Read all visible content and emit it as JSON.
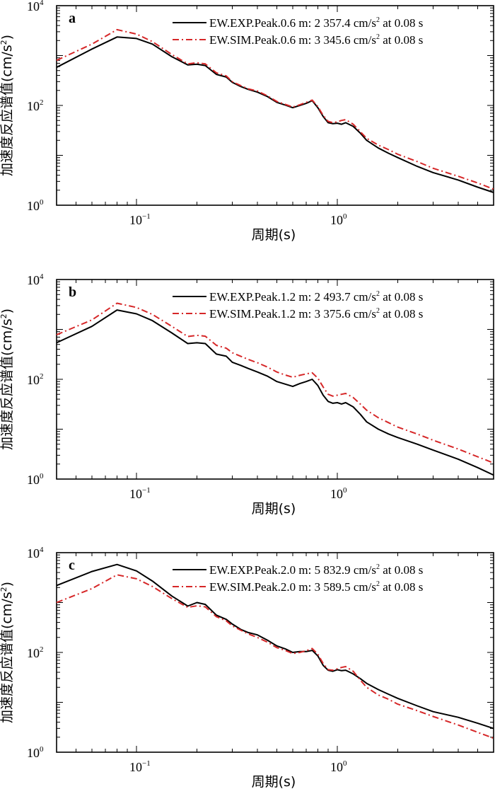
{
  "chart_data": [
    {
      "type": "line",
      "panel_label": "a",
      "xscale": "log",
      "yscale": "log",
      "xlim": [
        0.04,
        6
      ],
      "ylim": [
        1,
        10000
      ],
      "xticks": [
        {
          "base": "10",
          "exp": "−1"
        },
        {
          "base": "10",
          "exp": "0"
        }
      ],
      "yticks": [
        {
          "base": "10",
          "exp": "4"
        },
        {
          "base": "10",
          "exp": "2"
        },
        {
          "base": "10",
          "exp": "0"
        }
      ],
      "xlabel": "周期(s)",
      "ylabel": "加速度反应谱值(cm/s",
      "ylabel_sup": "2",
      "ylabel_close": ")",
      "legend_position": "top-right",
      "series": [
        {
          "name": "EW.EXP.Peak.0.6 m: 2 357.4 cm/s",
          "name_sup": "2",
          "name_tail": " at 0.08 s",
          "color": "#000000",
          "dash": "solid",
          "x": [
            0.04,
            0.06,
            0.08,
            0.1,
            0.12,
            0.15,
            0.18,
            0.2,
            0.22,
            0.25,
            0.28,
            0.3,
            0.33,
            0.36,
            0.4,
            0.45,
            0.5,
            0.55,
            0.6,
            0.65,
            0.7,
            0.75,
            0.8,
            0.85,
            0.9,
            0.95,
            1.0,
            1.05,
            1.1,
            1.2,
            1.3,
            1.4,
            1.6,
            1.8,
            2.0,
            2.5,
            3.0,
            4.0,
            5.0,
            6.0
          ],
          "y": [
            580,
            1350,
            2350,
            2200,
            1700,
            950,
            650,
            670,
            630,
            420,
            370,
            290,
            240,
            210,
            185,
            150,
            115,
            102,
            90,
            100,
            110,
            125,
            90,
            60,
            45,
            43,
            44,
            42,
            45,
            38,
            28,
            20,
            14,
            11,
            9,
            6,
            4.5,
            3.2,
            2.3,
            1.8
          ]
        },
        {
          "name": "EW.SIM.Peak.0.6 m: 3 345.6 cm/s",
          "name_sup": "2",
          "name_tail": " at 0.08 s",
          "color": "#d62728",
          "dash": "dashdot",
          "x": [
            0.04,
            0.06,
            0.08,
            0.1,
            0.12,
            0.15,
            0.18,
            0.2,
            0.22,
            0.25,
            0.28,
            0.3,
            0.33,
            0.36,
            0.4,
            0.45,
            0.5,
            0.55,
            0.6,
            0.65,
            0.7,
            0.75,
            0.8,
            0.85,
            0.9,
            0.95,
            1.0,
            1.05,
            1.1,
            1.2,
            1.3,
            1.4,
            1.6,
            1.8,
            2.0,
            2.5,
            3.0,
            4.0,
            5.0,
            6.0
          ],
          "y": [
            800,
            1700,
            3300,
            2700,
            1900,
            1050,
            680,
            720,
            680,
            450,
            390,
            300,
            250,
            215,
            195,
            155,
            120,
            105,
            93,
            103,
            115,
            128,
            95,
            63,
            48,
            45,
            47,
            50,
            52,
            42,
            30,
            22,
            16,
            13,
            10.5,
            7.5,
            5.5,
            3.8,
            2.8,
            2.1
          ]
        }
      ]
    },
    {
      "type": "line",
      "panel_label": "b",
      "xscale": "log",
      "yscale": "log",
      "xlim": [
        0.04,
        6
      ],
      "ylim": [
        1,
        10000
      ],
      "xticks": [
        {
          "base": "10",
          "exp": "−1"
        },
        {
          "base": "10",
          "exp": "0"
        }
      ],
      "yticks": [
        {
          "base": "10",
          "exp": "4"
        },
        {
          "base": "10",
          "exp": "2"
        },
        {
          "base": "10",
          "exp": "0"
        }
      ],
      "xlabel": "周期(s)",
      "ylabel": "加速度反应谱值(cm/s",
      "ylabel_sup": "2",
      "ylabel_close": ")",
      "legend_position": "top-right",
      "series": [
        {
          "name": "EW.EXP.Peak.1.2 m: 2 493.7 cm/s",
          "name_sup": "2",
          "name_tail": " at 0.08 s",
          "color": "#000000",
          "dash": "solid",
          "x": [
            0.04,
            0.06,
            0.08,
            0.1,
            0.12,
            0.15,
            0.18,
            0.2,
            0.22,
            0.25,
            0.28,
            0.3,
            0.33,
            0.36,
            0.4,
            0.45,
            0.5,
            0.55,
            0.6,
            0.65,
            0.7,
            0.75,
            0.8,
            0.85,
            0.9,
            0.95,
            1.0,
            1.05,
            1.1,
            1.2,
            1.3,
            1.4,
            1.6,
            1.8,
            2.0,
            2.5,
            3.0,
            4.0,
            5.0,
            6.0
          ],
          "y": [
            540,
            1150,
            2450,
            2050,
            1500,
            850,
            520,
            540,
            520,
            320,
            290,
            220,
            190,
            165,
            140,
            115,
            90,
            80,
            72,
            82,
            90,
            100,
            75,
            48,
            36,
            33,
            34,
            32,
            34,
            28,
            20,
            14,
            10,
            8,
            6.8,
            5,
            3.8,
            2.5,
            1.7,
            1.2
          ]
        },
        {
          "name": "EW.SIM.Peak.1.2 m: 3 375.6 cm/s",
          "name_sup": "2",
          "name_tail": " at 0.08 s",
          "color": "#d62728",
          "dash": "dashdot",
          "x": [
            0.04,
            0.06,
            0.08,
            0.1,
            0.12,
            0.15,
            0.18,
            0.2,
            0.22,
            0.25,
            0.28,
            0.3,
            0.33,
            0.36,
            0.4,
            0.45,
            0.5,
            0.55,
            0.6,
            0.65,
            0.7,
            0.75,
            0.8,
            0.85,
            0.9,
            0.95,
            1.0,
            1.05,
            1.1,
            1.2,
            1.3,
            1.4,
            1.6,
            1.8,
            2.0,
            2.5,
            3.0,
            4.0,
            5.0,
            6.0
          ],
          "y": [
            780,
            1550,
            3350,
            2750,
            2000,
            1150,
            720,
            760,
            730,
            480,
            420,
            340,
            290,
            250,
            215,
            175,
            140,
            122,
            110,
            120,
            128,
            135,
            105,
            70,
            50,
            46,
            48,
            50,
            52,
            43,
            32,
            24,
            17,
            13.5,
            11,
            8,
            6,
            4,
            2.8,
            2.1
          ]
        }
      ]
    },
    {
      "type": "line",
      "panel_label": "c",
      "xscale": "log",
      "yscale": "log",
      "xlim": [
        0.04,
        6
      ],
      "ylim": [
        1,
        10000
      ],
      "xticks": [
        {
          "base": "10",
          "exp": "−1"
        },
        {
          "base": "10",
          "exp": "0"
        }
      ],
      "yticks": [
        {
          "base": "10",
          "exp": "4"
        },
        {
          "base": "10",
          "exp": "2"
        },
        {
          "base": "10",
          "exp": "0"
        }
      ],
      "xlabel": "周期(s)",
      "ylabel": "加速度反应谱值(cm/s",
      "ylabel_sup": "2",
      "ylabel_close": ")",
      "legend_position": "top-right",
      "series": [
        {
          "name": "EW.EXP.Peak.2.0 m: 5 832.9 cm/s",
          "name_sup": "2",
          "name_tail": " at 0.08 s",
          "color": "#000000",
          "dash": "solid",
          "x": [
            0.04,
            0.06,
            0.08,
            0.1,
            0.12,
            0.15,
            0.18,
            0.2,
            0.22,
            0.25,
            0.28,
            0.3,
            0.33,
            0.36,
            0.4,
            0.45,
            0.5,
            0.55,
            0.6,
            0.65,
            0.7,
            0.75,
            0.8,
            0.85,
            0.9,
            0.95,
            1.0,
            1.05,
            1.1,
            1.2,
            1.3,
            1.4,
            1.6,
            1.8,
            2.0,
            2.5,
            3.0,
            4.0,
            5.0,
            6.0
          ],
          "y": [
            2200,
            4200,
            5800,
            4300,
            2700,
            1350,
            850,
            1000,
            920,
            560,
            460,
            370,
            290,
            250,
            225,
            175,
            135,
            118,
            100,
            104,
            104,
            110,
            85,
            55,
            44,
            42,
            45,
            43,
            44,
            37,
            30,
            24,
            18,
            14.5,
            12,
            8.5,
            6.5,
            5,
            3.8,
            3
          ]
        },
        {
          "name": "EW.SIM.Peak.2.0 m: 3 589.5 cm/s",
          "name_sup": "2",
          "name_tail": " at 0.08 s",
          "color": "#d62728",
          "dash": "dashdot",
          "x": [
            0.04,
            0.06,
            0.08,
            0.1,
            0.12,
            0.15,
            0.18,
            0.2,
            0.22,
            0.25,
            0.28,
            0.3,
            0.33,
            0.36,
            0.4,
            0.45,
            0.5,
            0.55,
            0.6,
            0.65,
            0.7,
            0.75,
            0.8,
            0.85,
            0.9,
            0.95,
            1.0,
            1.05,
            1.1,
            1.2,
            1.3,
            1.4,
            1.6,
            1.8,
            2.0,
            2.5,
            3.0,
            4.0,
            5.0,
            6.0
          ],
          "y": [
            1000,
            1900,
            3600,
            3000,
            2100,
            1200,
            800,
            860,
            820,
            520,
            430,
            340,
            280,
            235,
            200,
            160,
            125,
            110,
            95,
            100,
            108,
            120,
            92,
            60,
            45,
            44,
            47,
            50,
            52,
            42,
            28,
            20,
            14,
            11.5,
            9.2,
            6.8,
            5.2,
            3.5,
            2.5,
            1.9
          ]
        }
      ]
    }
  ]
}
